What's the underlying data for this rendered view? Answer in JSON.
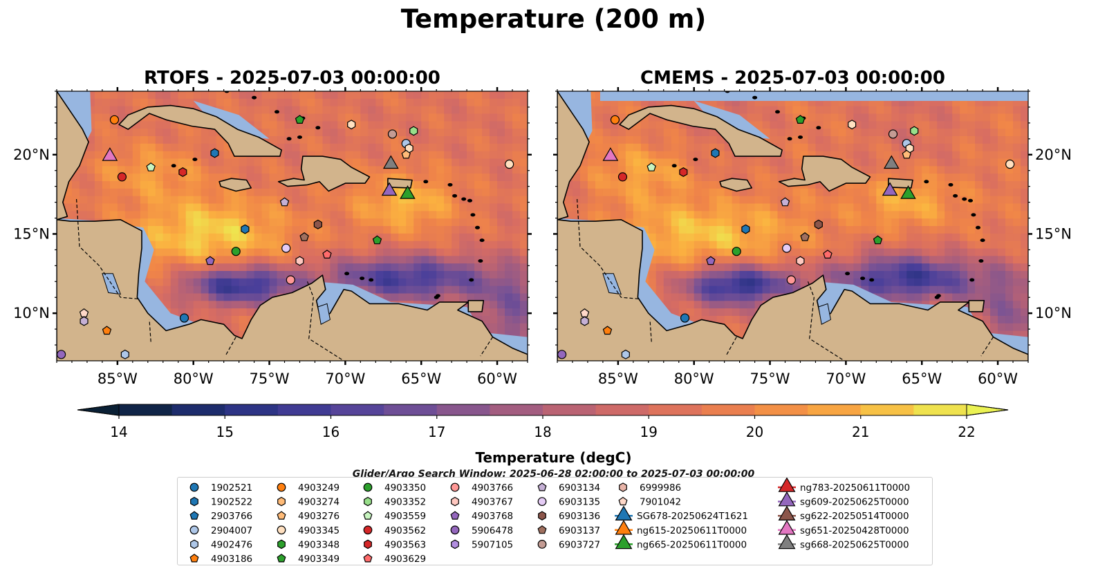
{
  "suptitle": "Temperature (200 m)",
  "panels": [
    {
      "id": "rtofs",
      "title": "RTOFS - 2025-07-03 00:00:00"
    },
    {
      "id": "cmems",
      "title": "CMEMS - 2025-07-03 00:00:00"
    }
  ],
  "axes": {
    "lon_ticks": [
      "85°W",
      "80°W",
      "75°W",
      "70°W",
      "65°W",
      "60°W"
    ],
    "lat_ticks": [
      "20°N",
      "15°N",
      "10°N"
    ],
    "lon_range": [
      -89,
      -58
    ],
    "lat_range": [
      7,
      24
    ]
  },
  "colorbar": {
    "label": "Temperature (degC)",
    "ticks": [
      "14",
      "15",
      "16",
      "17",
      "18",
      "19",
      "20",
      "21",
      "22"
    ],
    "vmin": 14,
    "vmax": 22,
    "extend": "both"
  },
  "search_window": "Glider/Argo Search Window: 2025-06-28 02:00:00 to 2025-07-03 00:00:00",
  "colors": {
    "land": "#d2b48c",
    "ocean_mask": "#97b6e0",
    "blue": "#1f77b4",
    "orange": "#ff7f0e",
    "green": "#2ca02c",
    "red": "#d62728",
    "purple": "#9467bd",
    "brown": "#8c564b",
    "pink": "#e377c2",
    "gray": "#7f7f7f"
  },
  "legend": {
    "columns": [
      [
        {
          "label": "1902521",
          "marker": "circle",
          "color": "#1f77b4"
        },
        {
          "label": "1902522",
          "marker": "hexagon",
          "color": "#1f77b4"
        },
        {
          "label": "2903766",
          "marker": "pentagon",
          "color": "#1f77b4"
        },
        {
          "label": "2904007",
          "marker": "circle",
          "color": "#aec7e8"
        },
        {
          "label": "4902476",
          "marker": "hexagon",
          "color": "#aec7e8"
        },
        {
          "label": "4903186",
          "marker": "pentagon",
          "color": "#ff7f0e"
        }
      ],
      [
        {
          "label": "4903249",
          "marker": "circle",
          "color": "#ff7f0e"
        },
        {
          "label": "4903274",
          "marker": "hexagon",
          "color": "#ffbb78"
        },
        {
          "label": "4903276",
          "marker": "pentagon",
          "color": "#ffbb78"
        },
        {
          "label": "4903345",
          "marker": "circle",
          "color": "#ffe0c0"
        },
        {
          "label": "4903348",
          "marker": "hexagon",
          "color": "#2ca02c"
        },
        {
          "label": "4903349",
          "marker": "pentagon",
          "color": "#2ca02c"
        }
      ],
      [
        {
          "label": "4903350",
          "marker": "circle",
          "color": "#2ca02c"
        },
        {
          "label": "4903352",
          "marker": "hexagon",
          "color": "#98df8a"
        },
        {
          "label": "4903559",
          "marker": "pentagon",
          "color": "#c8f5c0"
        },
        {
          "label": "4903562",
          "marker": "circle",
          "color": "#d62728"
        },
        {
          "label": "4903563",
          "marker": "hexagon",
          "color": "#d62728"
        },
        {
          "label": "4903629",
          "marker": "pentagon",
          "color": "#ff6b6b"
        }
      ],
      [
        {
          "label": "4903766",
          "marker": "circle",
          "color": "#ff9896"
        },
        {
          "label": "4903767",
          "marker": "hexagon",
          "color": "#ffc8c0"
        },
        {
          "label": "4903768",
          "marker": "pentagon",
          "color": "#9467bd"
        },
        {
          "label": "5906478",
          "marker": "circle",
          "color": "#9467bd"
        },
        {
          "label": "5907105",
          "marker": "hexagon",
          "color": "#b28ee0"
        }
      ],
      [
        {
          "label": "6903134",
          "marker": "pentagon",
          "color": "#c5b0d5"
        },
        {
          "label": "6903135",
          "marker": "circle",
          "color": "#e5ccf5"
        },
        {
          "label": "6903136",
          "marker": "hexagon",
          "color": "#8c564b"
        },
        {
          "label": "6903137",
          "marker": "pentagon",
          "color": "#a0705f"
        },
        {
          "label": "6903727",
          "marker": "circle",
          "color": "#c49c94"
        }
      ],
      [
        {
          "label": "6999986",
          "marker": "hexagon",
          "color": "#e8b4a8"
        },
        {
          "label": "7901042",
          "marker": "pentagon",
          "color": "#ffd8c8"
        },
        {
          "label": "SG678-20250624T1621",
          "marker": "triangle",
          "color": "#1f77b4"
        },
        {
          "label": "ng615-20250611T0000",
          "marker": "triangle",
          "color": "#ff7f0e"
        },
        {
          "label": "ng665-20250611T0000",
          "marker": "triangle",
          "color": "#2ca02c"
        }
      ],
      [
        {
          "label": "ng783-20250611T0000",
          "marker": "triangle",
          "color": "#d62728"
        },
        {
          "label": "sg609-20250625T0000",
          "marker": "triangle",
          "color": "#9467bd"
        },
        {
          "label": "sg622-20250514T0000",
          "marker": "triangle",
          "color": "#8c564b"
        },
        {
          "label": "sg651-20250428T0000",
          "marker": "triangle",
          "color": "#e377c2"
        },
        {
          "label": "sg668-20250625T0000",
          "marker": "triangle",
          "color": "#7f7f7f"
        }
      ]
    ]
  },
  "markers": [
    {
      "lon": -85.2,
      "lat": 22.2,
      "marker": "circle",
      "color": "#ff7f0e"
    },
    {
      "lon": -78.6,
      "lat": 20.1,
      "marker": "hexagon",
      "color": "#1f77b4"
    },
    {
      "lon": -82.8,
      "lat": 19.2,
      "marker": "pentagon",
      "color": "#c8f5c0"
    },
    {
      "lon": -84.7,
      "lat": 18.6,
      "marker": "circle",
      "color": "#d62728"
    },
    {
      "lon": -80.7,
      "lat": 18.9,
      "marker": "hexagon",
      "color": "#d62728"
    },
    {
      "lon": -73.0,
      "lat": 22.2,
      "marker": "pentagon",
      "color": "#2ca02c"
    },
    {
      "lon": -69.6,
      "lat": 21.9,
      "marker": "hexagon",
      "color": "#ffe0c0"
    },
    {
      "lon": -66.9,
      "lat": 21.3,
      "marker": "circle",
      "color": "#c49c94"
    },
    {
      "lon": -65.5,
      "lat": 21.5,
      "marker": "hexagon",
      "color": "#98df8a"
    },
    {
      "lon": -66.0,
      "lat": 20.7,
      "marker": "circle",
      "color": "#aec7e8"
    },
    {
      "lon": -65.8,
      "lat": 20.4,
      "marker": "hexagon",
      "color": "#ffe0c0"
    },
    {
      "lon": -66.0,
      "lat": 20.0,
      "marker": "pentagon",
      "color": "#ffbb78"
    },
    {
      "lon": -59.2,
      "lat": 19.4,
      "marker": "circle",
      "color": "#ffe0c0"
    },
    {
      "lon": -74.0,
      "lat": 17.0,
      "marker": "pentagon",
      "color": "#c5b0d5"
    },
    {
      "lon": -76.6,
      "lat": 15.3,
      "marker": "hexagon",
      "color": "#1f77b4"
    },
    {
      "lon": -71.8,
      "lat": 15.6,
      "marker": "hexagon",
      "color": "#8c564b"
    },
    {
      "lon": -72.7,
      "lat": 14.8,
      "marker": "pentagon",
      "color": "#a0705f"
    },
    {
      "lon": -67.9,
      "lat": 14.6,
      "marker": "pentagon",
      "color": "#2ca02c"
    },
    {
      "lon": -77.2,
      "lat": 13.9,
      "marker": "circle",
      "color": "#2ca02c"
    },
    {
      "lon": -78.9,
      "lat": 13.3,
      "marker": "pentagon",
      "color": "#9467bd"
    },
    {
      "lon": -73.9,
      "lat": 14.1,
      "marker": "circle",
      "color": "#e5ccf5"
    },
    {
      "lon": -73.0,
      "lat": 13.3,
      "marker": "hexagon",
      "color": "#ffc8c0"
    },
    {
      "lon": -71.2,
      "lat": 13.7,
      "marker": "pentagon",
      "color": "#ff6b6b"
    },
    {
      "lon": -73.6,
      "lat": 12.1,
      "marker": "circle",
      "color": "#ff9896"
    },
    {
      "lon": -80.6,
      "lat": 9.7,
      "marker": "circle",
      "color": "#1f77b4"
    },
    {
      "lon": -87.2,
      "lat": 10.0,
      "marker": "pentagon",
      "color": "#ffd8c8"
    },
    {
      "lon": -87.2,
      "lat": 9.5,
      "marker": "hexagon",
      "color": "#c5b0d5"
    },
    {
      "lon": -85.7,
      "lat": 8.9,
      "marker": "pentagon",
      "color": "#ff7f0e"
    },
    {
      "lon": -88.7,
      "lat": 7.4,
      "marker": "circle",
      "color": "#9467bd"
    },
    {
      "lon": -84.5,
      "lat": 7.4,
      "marker": "hexagon",
      "color": "#aec7e8"
    },
    {
      "lon": -85.5,
      "lat": 20.0,
      "marker": "triangle",
      "color": "#e377c2",
      "big": true
    },
    {
      "lon": -67.0,
      "lat": 19.5,
      "marker": "triangle",
      "color": "#7f7f7f",
      "big": true
    },
    {
      "lon": -67.1,
      "lat": 17.8,
      "marker": "triangle",
      "color": "#9467bd",
      "big": true
    },
    {
      "lon": -65.9,
      "lat": 17.6,
      "marker": "triangle",
      "color": "#2ca02c",
      "big": true
    }
  ]
}
